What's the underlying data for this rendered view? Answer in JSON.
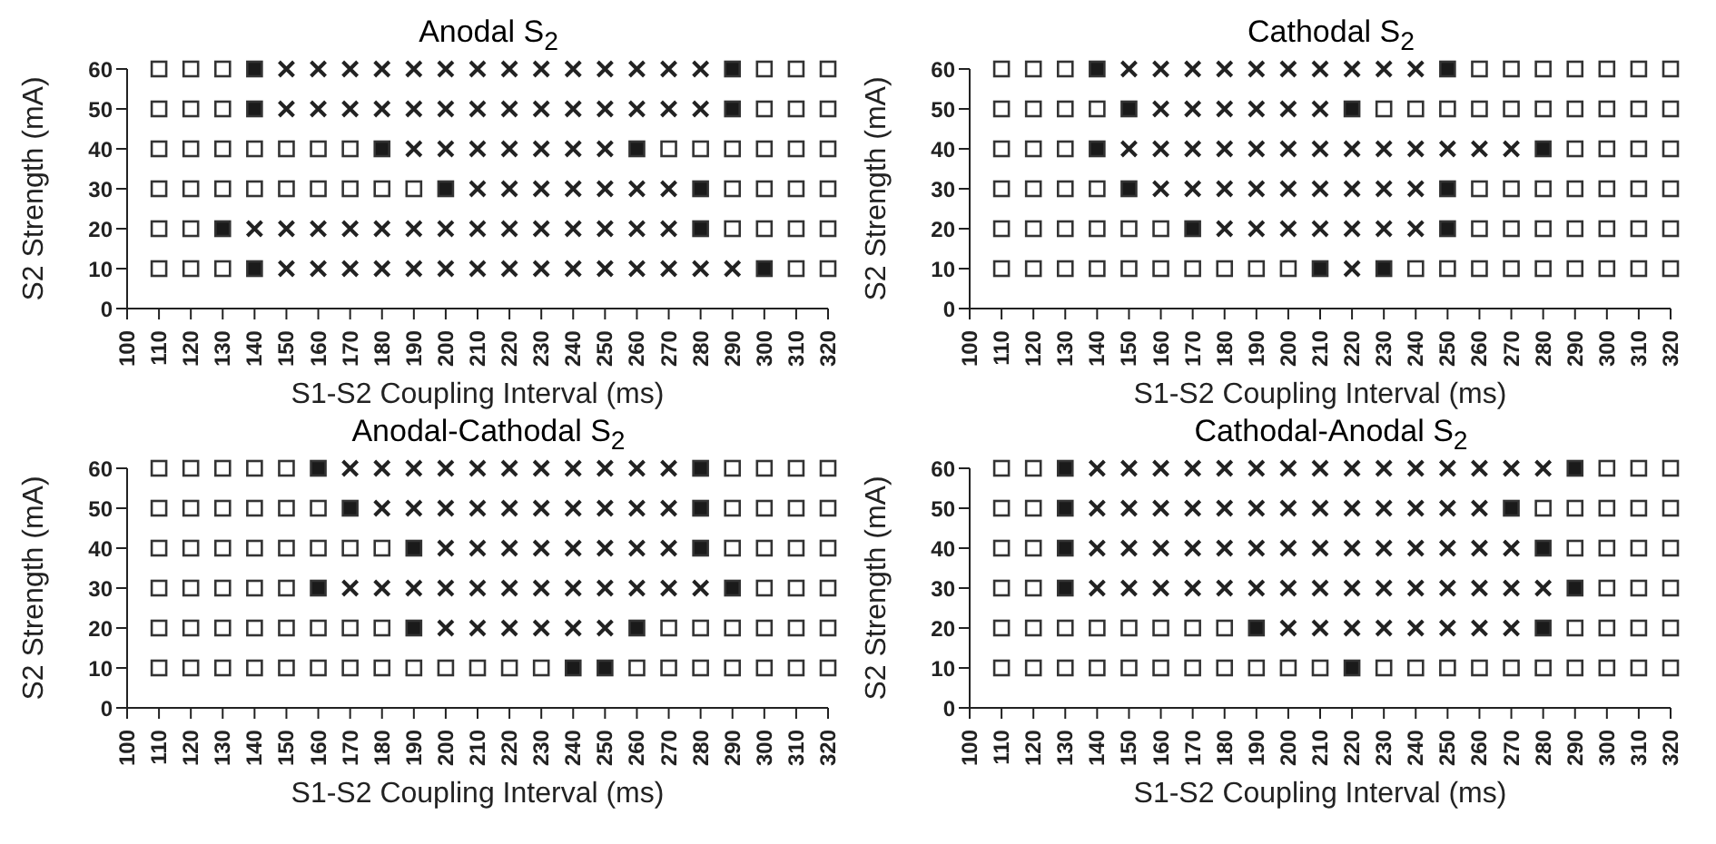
{
  "chart_data": [
    {
      "type": "scatter",
      "title": "Anodal S$_{2}$",
      "xlabel": "S1-S2 Coupling Interval (ms)",
      "ylabel": "S2 Strength (mA)",
      "xlim": [
        100,
        320
      ],
      "xticks": [
        100,
        110,
        120,
        130,
        140,
        150,
        160,
        170,
        180,
        190,
        200,
        210,
        220,
        230,
        240,
        250,
        260,
        270,
        280,
        290,
        300,
        310,
        320
      ],
      "ylim": [
        0,
        60
      ],
      "yticks": [
        0,
        10,
        20,
        30,
        40,
        50,
        60
      ],
      "series": [
        {
          "marker": "square",
          "color": "#ffffff",
          "x": [
            110,
            120,
            130,
            300,
            310,
            320,
            110,
            120,
            130,
            300,
            310,
            320,
            110,
            120,
            130,
            140,
            150,
            160,
            170,
            270,
            280,
            290,
            300,
            310,
            320,
            110,
            120,
            130,
            140,
            150,
            160,
            170,
            180,
            190,
            290,
            300,
            310,
            320,
            110,
            120,
            290,
            300,
            310,
            320,
            110,
            120,
            130,
            310,
            320
          ],
          "values": [
            60,
            60,
            60,
            60,
            60,
            60,
            50,
            50,
            50,
            50,
            50,
            50,
            40,
            40,
            40,
            40,
            40,
            40,
            40,
            40,
            40,
            40,
            40,
            40,
            40,
            30,
            30,
            30,
            30,
            30,
            30,
            30,
            30,
            30,
            30,
            30,
            30,
            30,
            20,
            20,
            20,
            20,
            20,
            20,
            10,
            10,
            10,
            10,
            10
          ]
        },
        {
          "marker": "cross",
          "color": "#222222",
          "x": [
            150,
            160,
            170,
            180,
            190,
            200,
            210,
            220,
            230,
            240,
            250,
            260,
            270,
            280,
            150,
            160,
            170,
            180,
            190,
            200,
            210,
            220,
            230,
            240,
            250,
            260,
            270,
            280,
            190,
            200,
            210,
            220,
            230,
            240,
            250,
            210,
            220,
            230,
            240,
            250,
            260,
            270,
            140,
            150,
            160,
            170,
            180,
            190,
            200,
            210,
            220,
            230,
            240,
            250,
            260,
            270,
            150,
            160,
            170,
            180,
            190,
            200,
            210,
            220,
            230,
            240,
            250,
            260,
            270,
            280,
            290
          ],
          "values": [
            60,
            60,
            60,
            60,
            60,
            60,
            60,
            60,
            60,
            60,
            60,
            60,
            60,
            60,
            50,
            50,
            50,
            50,
            50,
            50,
            50,
            50,
            50,
            50,
            50,
            50,
            50,
            50,
            40,
            40,
            40,
            40,
            40,
            40,
            40,
            30,
            30,
            30,
            30,
            30,
            30,
            30,
            20,
            20,
            20,
            20,
            20,
            20,
            20,
            20,
            20,
            20,
            20,
            20,
            20,
            20,
            10,
            10,
            10,
            10,
            10,
            10,
            10,
            10,
            10,
            10,
            10,
            10,
            10,
            10,
            10
          ]
        },
        {
          "marker": "square",
          "color": "#1a1a1a",
          "x": [
            140,
            290,
            140,
            290,
            180,
            260,
            200,
            280,
            130,
            280,
            140,
            300
          ],
          "values": [
            60,
            60,
            50,
            50,
            40,
            40,
            30,
            30,
            20,
            20,
            10,
            10
          ]
        }
      ]
    },
    {
      "type": "scatter",
      "title": "Cathodal S$_{2}$",
      "xlabel": "S1-S2 Coupling Interval (ms)",
      "ylabel": "S2 Strength (mA)",
      "xlim": [
        100,
        320
      ],
      "xticks": [
        100,
        110,
        120,
        130,
        140,
        150,
        160,
        170,
        180,
        190,
        200,
        210,
        220,
        230,
        240,
        250,
        260,
        270,
        280,
        290,
        300,
        310,
        320
      ],
      "ylim": [
        0,
        60
      ],
      "yticks": [
        0,
        10,
        20,
        30,
        40,
        50,
        60
      ],
      "series": [
        {
          "marker": "square",
          "color": "#ffffff",
          "x": [
            110,
            120,
            130,
            260,
            270,
            280,
            290,
            300,
            310,
            320,
            110,
            120,
            130,
            140,
            230,
            240,
            250,
            260,
            270,
            280,
            290,
            300,
            310,
            320,
            110,
            120,
            130,
            290,
            300,
            310,
            320,
            110,
            120,
            130,
            140,
            260,
            270,
            280,
            290,
            300,
            310,
            320,
            110,
            120,
            130,
            140,
            150,
            160,
            260,
            270,
            280,
            290,
            300,
            310,
            320,
            110,
            120,
            130,
            140,
            150,
            160,
            170,
            180,
            190,
            200,
            240,
            250,
            260,
            270,
            280,
            290,
            300,
            310,
            320
          ],
          "values": [
            60,
            60,
            60,
            60,
            60,
            60,
            60,
            60,
            60,
            60,
            50,
            50,
            50,
            50,
            50,
            50,
            50,
            50,
            50,
            50,
            50,
            50,
            50,
            50,
            40,
            40,
            40,
            40,
            40,
            40,
            40,
            30,
            30,
            30,
            30,
            30,
            30,
            30,
            30,
            30,
            30,
            30,
            20,
            20,
            20,
            20,
            20,
            20,
            20,
            20,
            20,
            20,
            20,
            20,
            20,
            10,
            10,
            10,
            10,
            10,
            10,
            10,
            10,
            10,
            10,
            10,
            10,
            10,
            10,
            10,
            10,
            10,
            10,
            10
          ]
        },
        {
          "marker": "cross",
          "color": "#222222",
          "x": [
            150,
            160,
            170,
            180,
            190,
            200,
            210,
            220,
            230,
            240,
            160,
            170,
            180,
            190,
            200,
            210,
            150,
            160,
            170,
            180,
            190,
            200,
            210,
            220,
            230,
            240,
            250,
            260,
            270,
            160,
            170,
            180,
            190,
            200,
            210,
            220,
            230,
            240,
            180,
            190,
            200,
            210,
            220,
            230,
            240,
            220
          ],
          "values": [
            60,
            60,
            60,
            60,
            60,
            60,
            60,
            60,
            60,
            60,
            50,
            50,
            50,
            50,
            50,
            50,
            40,
            40,
            40,
            40,
            40,
            40,
            40,
            40,
            40,
            40,
            40,
            40,
            40,
            30,
            30,
            30,
            30,
            30,
            30,
            30,
            30,
            30,
            20,
            20,
            20,
            20,
            20,
            20,
            20,
            10
          ]
        },
        {
          "marker": "square",
          "color": "#1a1a1a",
          "x": [
            140,
            250,
            150,
            220,
            140,
            280,
            150,
            250,
            170,
            250,
            210,
            230
          ],
          "values": [
            60,
            60,
            50,
            50,
            40,
            40,
            30,
            30,
            20,
            20,
            10,
            10
          ]
        }
      ]
    },
    {
      "type": "scatter",
      "title": "Anodal-Cathodal S$_{2}$",
      "xlabel": "S1-S2 Coupling Interval (ms)",
      "ylabel": "S2 Strength (mA)",
      "xlim": [
        100,
        320
      ],
      "xticks": [
        100,
        110,
        120,
        130,
        140,
        150,
        160,
        170,
        180,
        190,
        200,
        210,
        220,
        230,
        240,
        250,
        260,
        270,
        280,
        290,
        300,
        310,
        320
      ],
      "ylim": [
        0,
        60
      ],
      "yticks": [
        0,
        10,
        20,
        30,
        40,
        50,
        60
      ],
      "series": [
        {
          "marker": "square",
          "color": "#ffffff",
          "x": [
            110,
            120,
            130,
            140,
            150,
            290,
            300,
            310,
            320,
            110,
            120,
            130,
            140,
            150,
            160,
            290,
            300,
            310,
            320,
            110,
            120,
            130,
            140,
            150,
            160,
            170,
            180,
            290,
            300,
            310,
            320,
            110,
            120,
            130,
            140,
            150,
            300,
            310,
            320,
            110,
            120,
            130,
            140,
            150,
            160,
            170,
            180,
            270,
            280,
            290,
            300,
            310,
            320,
            110,
            120,
            130,
            140,
            150,
            160,
            170,
            180,
            190,
            200,
            210,
            220,
            230,
            260,
            270,
            280,
            290,
            300,
            310,
            320
          ],
          "values": [
            60,
            60,
            60,
            60,
            60,
            60,
            60,
            60,
            60,
            50,
            50,
            50,
            50,
            50,
            50,
            50,
            50,
            50,
            50,
            40,
            40,
            40,
            40,
            40,
            40,
            40,
            40,
            40,
            40,
            40,
            40,
            30,
            30,
            30,
            30,
            30,
            30,
            30,
            30,
            20,
            20,
            20,
            20,
            20,
            20,
            20,
            20,
            20,
            20,
            20,
            20,
            20,
            20,
            10,
            10,
            10,
            10,
            10,
            10,
            10,
            10,
            10,
            10,
            10,
            10,
            10,
            10,
            10,
            10,
            10,
            10,
            10,
            10
          ]
        },
        {
          "marker": "cross",
          "color": "#222222",
          "x": [
            170,
            180,
            190,
            200,
            210,
            220,
            230,
            240,
            250,
            260,
            270,
            180,
            190,
            200,
            210,
            220,
            230,
            240,
            250,
            260,
            270,
            200,
            210,
            220,
            230,
            240,
            250,
            260,
            270,
            170,
            180,
            190,
            200,
            210,
            220,
            230,
            240,
            250,
            260,
            270,
            280,
            200,
            210,
            220,
            230,
            240,
            250
          ],
          "values": [
            60,
            60,
            60,
            60,
            60,
            60,
            60,
            60,
            60,
            60,
            60,
            50,
            50,
            50,
            50,
            50,
            50,
            50,
            50,
            50,
            50,
            40,
            40,
            40,
            40,
            40,
            40,
            40,
            40,
            30,
            30,
            30,
            30,
            30,
            30,
            30,
            30,
            30,
            30,
            30,
            30,
            20,
            20,
            20,
            20,
            20,
            20
          ]
        },
        {
          "marker": "square",
          "color": "#1a1a1a",
          "x": [
            160,
            280,
            170,
            280,
            190,
            280,
            160,
            290,
            190,
            260,
            240,
            250
          ],
          "values": [
            60,
            60,
            50,
            50,
            40,
            40,
            30,
            30,
            20,
            20,
            10,
            10
          ]
        }
      ]
    },
    {
      "type": "scatter",
      "title": "Cathodal-Anodal S$_{2}$",
      "xlabel": "S1-S2 Coupling Interval (ms)",
      "ylabel": "S2 Strength (mA)",
      "xlim": [
        100,
        320
      ],
      "xticks": [
        100,
        110,
        120,
        130,
        140,
        150,
        160,
        170,
        180,
        190,
        200,
        210,
        220,
        230,
        240,
        250,
        260,
        270,
        280,
        290,
        300,
        310,
        320
      ],
      "ylim": [
        0,
        60
      ],
      "yticks": [
        0,
        10,
        20,
        30,
        40,
        50,
        60
      ],
      "series": [
        {
          "marker": "square",
          "color": "#ffffff",
          "x": [
            110,
            120,
            300,
            310,
            320,
            110,
            120,
            280,
            290,
            300,
            310,
            320,
            110,
            120,
            290,
            300,
            310,
            320,
            110,
            120,
            300,
            310,
            320,
            110,
            120,
            130,
            140,
            150,
            160,
            170,
            180,
            290,
            300,
            310,
            320,
            110,
            120,
            130,
            140,
            150,
            160,
            170,
            180,
            190,
            200,
            210,
            230,
            240,
            250,
            260,
            270,
            280,
            290,
            300,
            310,
            320
          ],
          "values": [
            60,
            60,
            60,
            60,
            60,
            50,
            50,
            50,
            50,
            50,
            50,
            50,
            40,
            40,
            40,
            40,
            40,
            40,
            30,
            30,
            30,
            30,
            30,
            20,
            20,
            20,
            20,
            20,
            20,
            20,
            20,
            20,
            20,
            20,
            20,
            10,
            10,
            10,
            10,
            10,
            10,
            10,
            10,
            10,
            10,
            10,
            10,
            10,
            10,
            10,
            10,
            10,
            10,
            10,
            10,
            10
          ]
        },
        {
          "marker": "cross",
          "color": "#222222",
          "x": [
            140,
            150,
            160,
            170,
            180,
            190,
            200,
            210,
            220,
            230,
            240,
            250,
            260,
            270,
            280,
            140,
            150,
            160,
            170,
            180,
            190,
            200,
            210,
            220,
            230,
            240,
            250,
            260,
            140,
            150,
            160,
            170,
            180,
            190,
            200,
            210,
            220,
            230,
            240,
            250,
            260,
            270,
            140,
            150,
            160,
            170,
            180,
            190,
            200,
            210,
            220,
            230,
            240,
            250,
            260,
            270,
            280,
            200,
            210,
            220,
            230,
            240,
            250,
            260,
            270
          ],
          "values": [
            60,
            60,
            60,
            60,
            60,
            60,
            60,
            60,
            60,
            60,
            60,
            60,
            60,
            60,
            60,
            50,
            50,
            50,
            50,
            50,
            50,
            50,
            50,
            50,
            50,
            50,
            50,
            50,
            40,
            40,
            40,
            40,
            40,
            40,
            40,
            40,
            40,
            40,
            40,
            40,
            40,
            40,
            30,
            30,
            30,
            30,
            30,
            30,
            30,
            30,
            30,
            30,
            30,
            30,
            30,
            30,
            30,
            20,
            20,
            20,
            20,
            20,
            20,
            20,
            20
          ]
        },
        {
          "marker": "square",
          "color": "#1a1a1a",
          "x": [
            130,
            290,
            130,
            270,
            130,
            280,
            130,
            290,
            190,
            280,
            220
          ],
          "values": [
            60,
            60,
            50,
            50,
            40,
            40,
            30,
            30,
            20,
            20,
            10
          ]
        }
      ]
    }
  ]
}
